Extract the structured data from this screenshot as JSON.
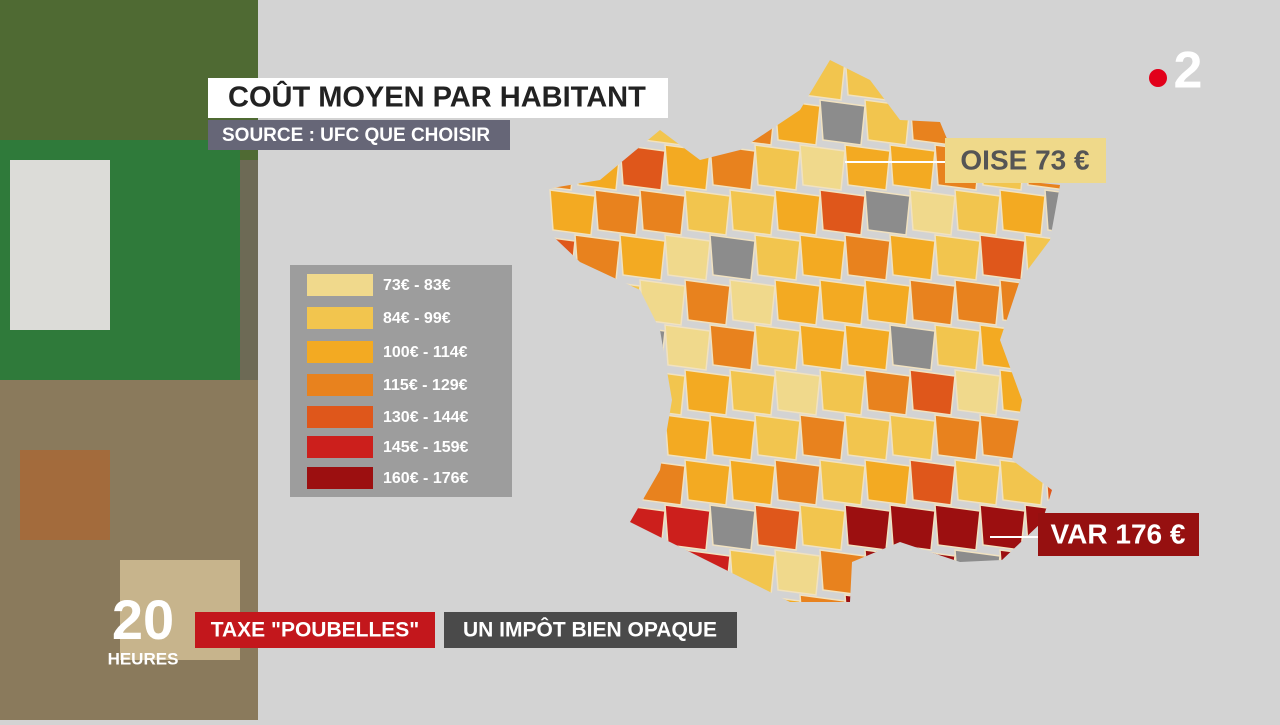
{
  "header": {
    "title": "COÛT MOYEN PAR HABITANT",
    "source": "SOURCE : UFC QUE CHOISIR"
  },
  "legend": {
    "items": [
      {
        "label": "73€ - 83€",
        "color": "#f0d98c"
      },
      {
        "label": "84€ - 99€",
        "color": "#f2c54e"
      },
      {
        "label": "100€ - 114€",
        "color": "#f3aa22"
      },
      {
        "label": "115€ - 129€",
        "color": "#e8821e"
      },
      {
        "label": "130€ - 144€",
        "color": "#df571b"
      },
      {
        "label": "145€ - 159€",
        "color": "#cc1f1c"
      },
      {
        "label": "160€ - 176€",
        "color": "#9c0f10"
      }
    ]
  },
  "callouts": [
    {
      "label": "OISE 73 €"
    },
    {
      "label": "VAR 176 €"
    }
  ],
  "logo": {
    "channel": "2"
  },
  "program": {
    "number": "20",
    "label": "HEURES"
  },
  "banner": {
    "topic": "TAXE \"POUBELLES\"",
    "headline": "UN IMPÔT BIEN OPAQUE"
  }
}
